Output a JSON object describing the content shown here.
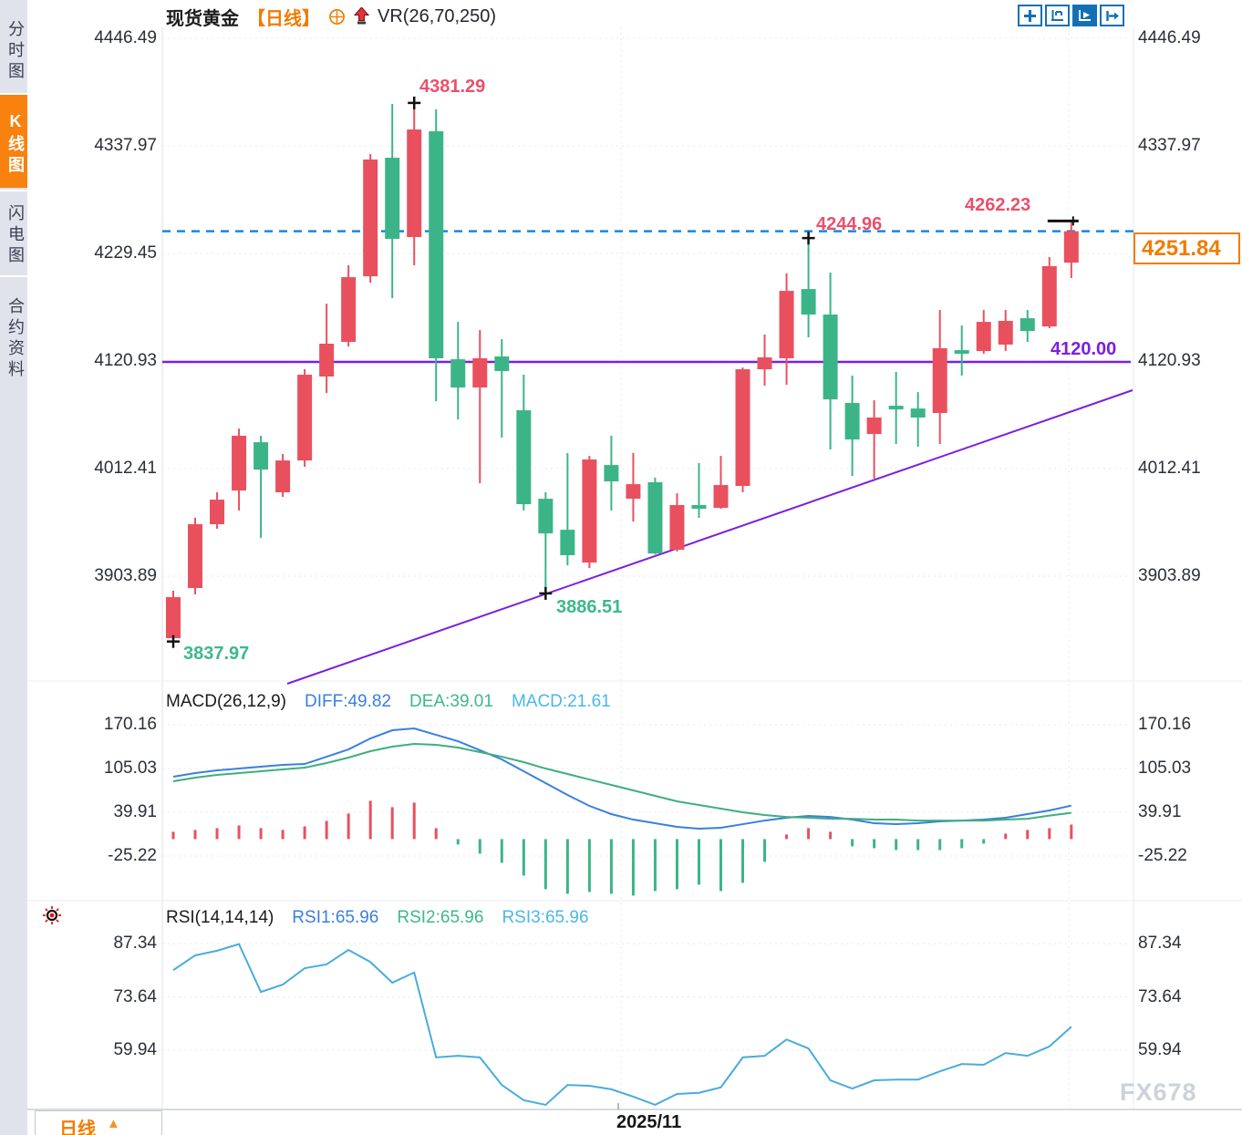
{
  "header": {
    "title": "现货黄金",
    "timeframe_tag": "【日线】",
    "indicator_label": "VR(26,70,250)",
    "watermark": "FX678"
  },
  "sidebar": {
    "items": [
      {
        "label": "分时图",
        "active": false
      },
      {
        "label": "K线图",
        "active": true
      },
      {
        "label": "闪电图",
        "active": false
      },
      {
        "label": "合约资料",
        "active": false
      }
    ]
  },
  "toolbar": {
    "icons": [
      "move-tool",
      "axis-scale-tool",
      "chart-play-tool",
      "pan-right-tool"
    ]
  },
  "bottom_bar": {
    "timeframe_label": "日线",
    "date_label": "2025/11"
  },
  "annotations": {
    "swing_high_1": "4381.29",
    "swing_high_2": "4244.96",
    "swing_high_3": "4262.23",
    "swing_low_1": "3837.97",
    "swing_low_2": "3886.51",
    "support_line": "4120.00",
    "last_price": "4251.84"
  },
  "colors": {
    "up_candle": "#e9505e",
    "down_candle": "#3bb587",
    "support_purple": "#7a1fe0",
    "last_price_dashed_blue": "#1787e0",
    "accent_orange": "#f07c00",
    "toolbar_blue": "#1470b4",
    "diff_line": "#3a7fdf",
    "dea_line": "#3fae7f",
    "rsi_line": "#49acdc",
    "hist_up": "#e9505e",
    "hist_down": "#3bb587"
  },
  "macd_header": {
    "name": "MACD(26,12,9)",
    "diff_label": "DIFF:49.82",
    "dea_label": "DEA:39.01",
    "macd_label": "MACD:21.61"
  },
  "rsi_header": {
    "name": "RSI(14,14,14)",
    "rsi1_label": "RSI1:65.96",
    "rsi2_label": "RSI2:65.96",
    "rsi3_label": "RSI3:65.96"
  },
  "chart_data": [
    {
      "type": "candlestick",
      "title": "现货黄金 日线",
      "y_ticks": [
        "4446.49",
        "4337.97",
        "4229.45",
        "4120.93",
        "4012.41",
        "3903.89"
      ],
      "x_tick_labels": [
        "2025/11"
      ],
      "support_level": 4120.0,
      "last_price_level": 4251.84,
      "trendline_note": "rising purple trendline under the lows",
      "candles_ohlc": [
        [
          3841.3,
          3889.2,
          3837.97,
          3882.7
        ],
        [
          3891.9,
          3962.7,
          3885.5,
          3956.3
        ],
        [
          3956.3,
          3988.5,
          3951.7,
          3981.1
        ],
        [
          3990.3,
          4052.8,
          3970.1,
          4045.5
        ],
        [
          4039.0,
          4045.5,
          3942.4,
          4011.4
        ],
        [
          3988.5,
          4027.1,
          3983.9,
          4020.6
        ],
        [
          4020.6,
          4112.6,
          4014.2,
          4107.1
        ],
        [
          4105.3,
          4178.8,
          4088.7,
          4138.4
        ],
        [
          4140.2,
          4217.5,
          4135.6,
          4205.5
        ],
        [
          4206.4,
          4329.7,
          4200.0,
          4324.2
        ],
        [
          4326.0,
          4380.3,
          4184.4,
          4244.2
        ],
        [
          4246.0,
          4381.29,
          4217.5,
          4354.5
        ],
        [
          4352.7,
          4374.8,
          4080.4,
          4123.7
        ],
        [
          4122.7,
          4160.4,
          4062.0,
          4094.2
        ],
        [
          4094.2,
          4152.2,
          3997.6,
          4123.7
        ],
        [
          4125.5,
          4143.0,
          4043.7,
          4110.8
        ],
        [
          4071.2,
          4107.1,
          3970.1,
          3976.5
        ],
        [
          3982.0,
          3988.5,
          3886.51,
          3947.0
        ],
        [
          3950.7,
          4028.0,
          3914.8,
          3925.0
        ],
        [
          3917.6,
          4025.2,
          3912.1,
          4021.6
        ],
        [
          4016.0,
          4045.5,
          3970.1,
          3999.5
        ],
        [
          3982.0,
          4028.0,
          3959.0,
          3996.7
        ],
        [
          3998.6,
          4003.2,
          3925.9,
          3926.8
        ],
        [
          3930.5,
          3987.5,
          3928.7,
          3975.6
        ],
        [
          3975.6,
          4017.9,
          3962.7,
          3971.9
        ],
        [
          3972.8,
          4025.2,
          3971.9,
          3995.8
        ],
        [
          3994.9,
          4114.4,
          3988.5,
          4112.6
        ],
        [
          4112.6,
          4147.6,
          4096.1,
          4124.6
        ],
        [
          4123.7,
          4209.2,
          4097.0,
          4191.7
        ],
        [
          4193.5,
          4244.96,
          4144.8,
          4167.8
        ],
        [
          4167.8,
          4210.1,
          4031.7,
          4082.2
        ],
        [
          4078.6,
          4106.2,
          4005.0,
          4041.8
        ],
        [
          4047.3,
          4081.3,
          4002.2,
          4063.9
        ],
        [
          4075.8,
          4109.9,
          4037.2,
          4072.1
        ],
        [
          4073.0,
          4089.6,
          4034.4,
          4063.9
        ],
        [
          4068.5,
          4172.4,
          4037.2,
          4133.8
        ],
        [
          4131.9,
          4156.8,
          4106.2,
          4128.3
        ],
        [
          4131.0,
          4172.4,
          4128.3,
          4160.4
        ],
        [
          4137.5,
          4172.4,
          4131.0,
          4161.4
        ],
        [
          4164.1,
          4172.4,
          4140.2,
          4151.2
        ],
        [
          4155.8,
          4225.8,
          4154.0,
          4216.6
        ],
        [
          4220.2,
          4262.23,
          4204.6,
          4251.84
        ]
      ],
      "markers": [
        {
          "candle": 0,
          "at": "low",
          "glyph": "plus",
          "label": "3837.97"
        },
        {
          "candle": 11,
          "at": "high",
          "glyph": "plus",
          "label": "4381.29"
        },
        {
          "candle": 17,
          "at": "low",
          "glyph": "plus",
          "label": "3886.51"
        },
        {
          "candle": 29,
          "at": "high",
          "glyph": "plus",
          "label": "4244.96"
        },
        {
          "candle": 41,
          "at": "high",
          "glyph": "tick",
          "label": "4262.23"
        }
      ]
    },
    {
      "type": "line+bar",
      "title": "MACD(26,12,9)",
      "y_ticks": [
        "170.16",
        "105.03",
        "39.91",
        "-25.22"
      ],
      "series": [
        {
          "name": "DIFF",
          "values": [
            92.8,
            98.2,
            102.3,
            105.0,
            107.7,
            110.4,
            111.8,
            122.6,
            133.5,
            149.8,
            162.0,
            164.7,
            155.2,
            145.7,
            132.2,
            118.6,
            101.0,
            83.3,
            65.7,
            49.4,
            37.2,
            29.0,
            23.6,
            18.2,
            15.5,
            16.8,
            22.2,
            27.6,
            31.7,
            34.4,
            33.0,
            29.0,
            23.6,
            22.2,
            23.6,
            26.3,
            27.6,
            29.0,
            31.7,
            37.2,
            42.6,
            49.82
          ]
        },
        {
          "name": "DEA",
          "values": [
            86.0,
            91.4,
            95.5,
            98.2,
            100.9,
            103.7,
            106.4,
            113.2,
            121.3,
            130.8,
            137.6,
            141.6,
            140.3,
            136.2,
            129.4,
            122.6,
            114.5,
            105.0,
            96.9,
            88.7,
            80.6,
            72.5,
            64.3,
            56.2,
            50.7,
            45.3,
            39.9,
            35.8,
            33.0,
            31.7,
            30.3,
            30.3,
            29.0,
            29.0,
            27.6,
            27.6,
            27.6,
            27.6,
            29.0,
            30.3,
            35.0,
            39.01
          ]
        },
        {
          "name": "MACD-histogram",
          "values": [
            10.9,
            13.6,
            16.3,
            20.4,
            16.3,
            13.6,
            19.0,
            27.1,
            38.0,
            57.0,
            47.5,
            54.3,
            16.3,
            -8.1,
            -21.7,
            -35.3,
            -54.3,
            -74.6,
            -81.4,
            -78.7,
            -81.4,
            -84.1,
            -77.3,
            -74.6,
            -67.8,
            -77.3,
            -65.1,
            -33.9,
            6.8,
            16.3,
            10.9,
            -10.9,
            -13.6,
            -16.3,
            -16.3,
            -16.3,
            -13.6,
            -6.8,
            8.1,
            13.6,
            16.3,
            21.61
          ]
        }
      ]
    },
    {
      "type": "line",
      "title": "RSI(14,14,14)",
      "y_ticks": [
        "87.34",
        "73.64",
        "59.94"
      ],
      "series": [
        {
          "name": "RSI1",
          "values": [
            80.5,
            84.3,
            85.5,
            87.2,
            74.9,
            76.8,
            81.0,
            82.0,
            85.7,
            82.6,
            77.3,
            79.9,
            58.1,
            58.5,
            58.1,
            51.0,
            47.1,
            45.9,
            51.0,
            50.8,
            49.9,
            48.0,
            45.9,
            48.7,
            49.0,
            50.4,
            58.1,
            58.5,
            62.7,
            60.4,
            52.2,
            50.1,
            52.2,
            52.4,
            52.4,
            54.5,
            56.4,
            56.2,
            59.2,
            58.5,
            60.9,
            65.96
          ]
        }
      ]
    }
  ]
}
